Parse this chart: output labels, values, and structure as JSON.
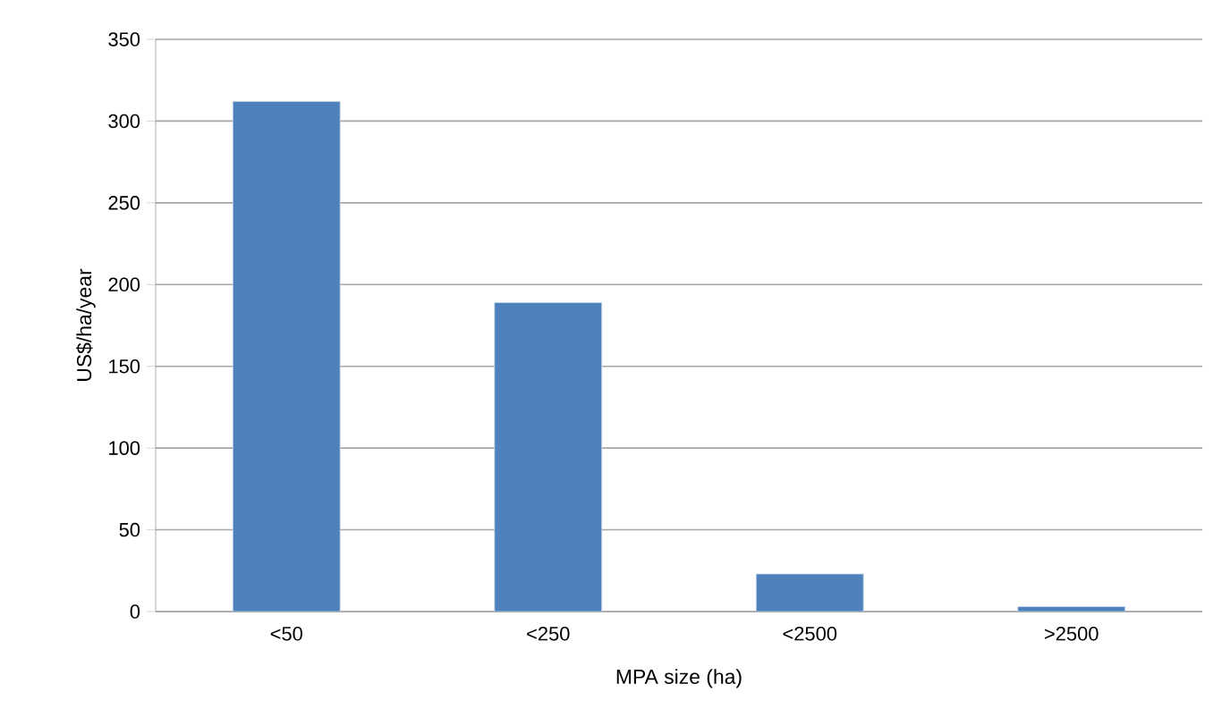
{
  "chart_data": {
    "type": "bar",
    "xlabel": "MPA size (ha)",
    "ylabel": "US$/ha/year",
    "categories": [
      "<50",
      "<250",
      "<2500",
      ">2500"
    ],
    "values": [
      312,
      189,
      23,
      3
    ],
    "color": "#4f81bd",
    "ylim": [
      0,
      350
    ],
    "yticks": [
      0,
      50,
      100,
      150,
      200,
      250,
      300,
      350
    ],
    "grid": "y"
  }
}
